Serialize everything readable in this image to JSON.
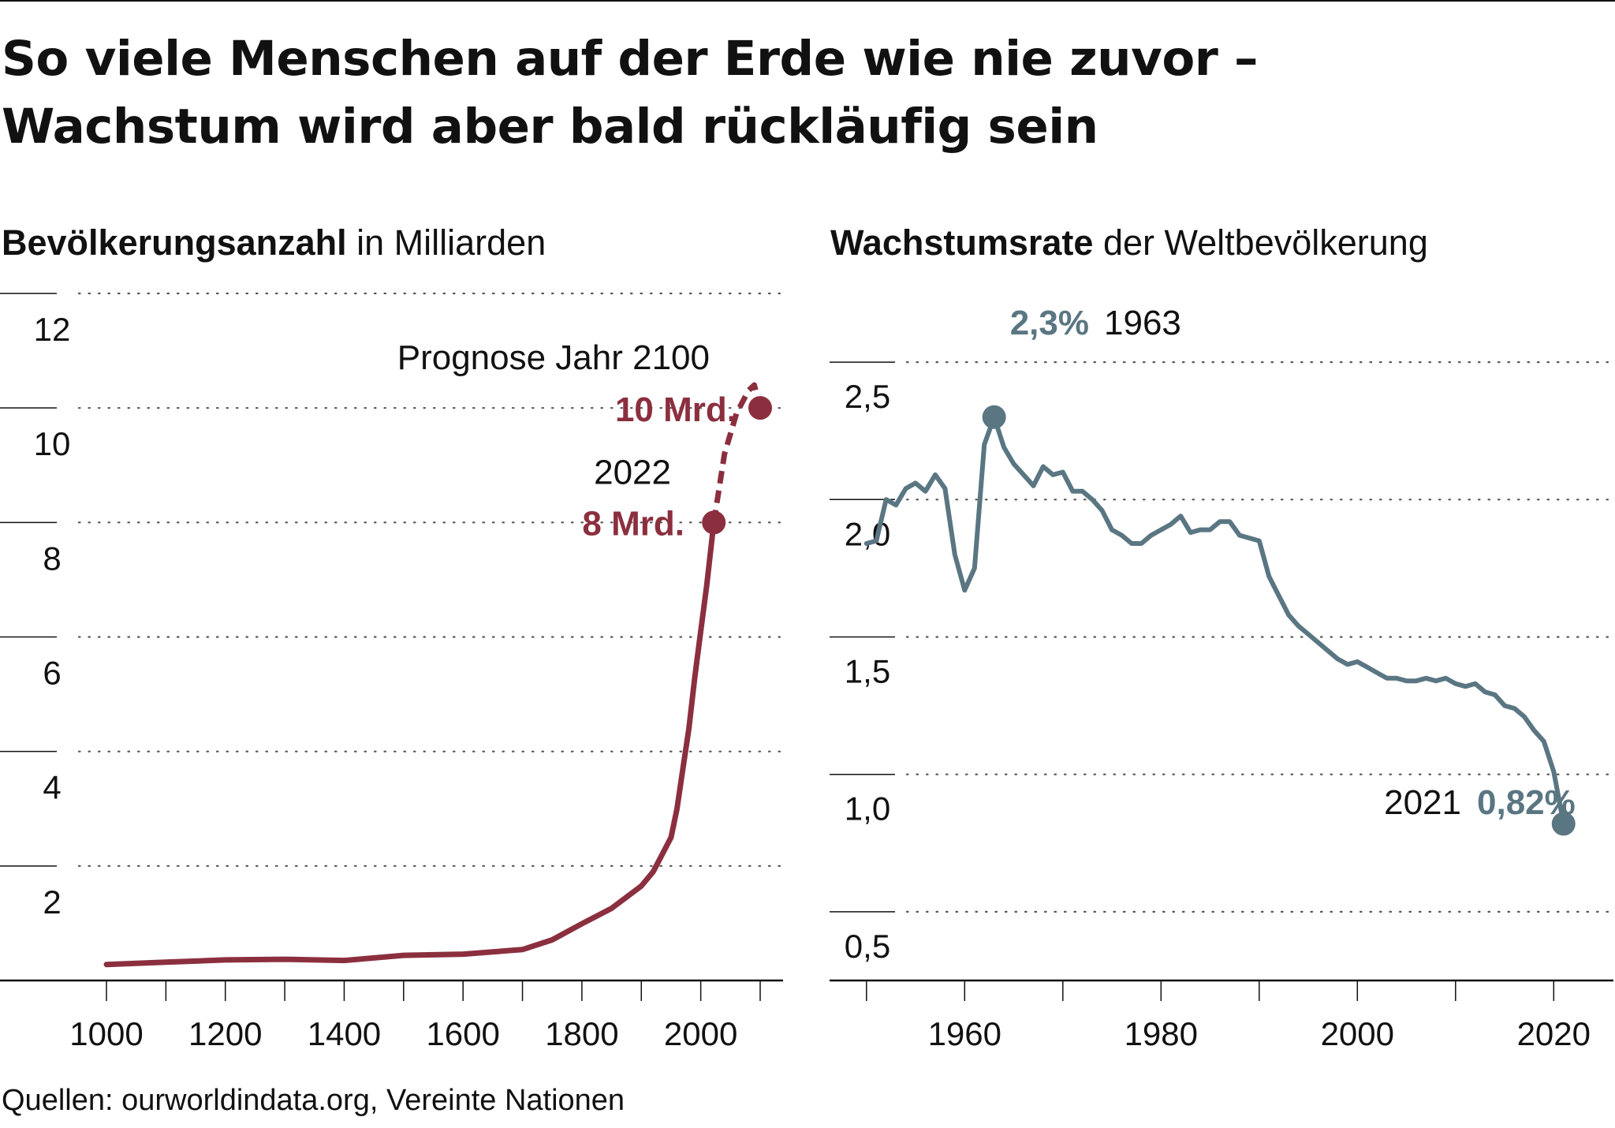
{
  "title": [
    "So viele Menschen auf der Erde wie nie zuvor –",
    "Wachstum wird aber bald rückläufig sein"
  ],
  "source": "Quellen: ourworldindata.org, Vereinte Nationen",
  "colors": {
    "population": "#8b2f3f",
    "growth": "#5a7682",
    "text": "#111111",
    "grid": "#555555"
  },
  "chart_data": [
    {
      "type": "line",
      "title_bold": "Bevölkerungsanzahl",
      "title_rest": " in Milliarden",
      "xlim": [
        1000,
        2100
      ],
      "ylim": [
        0,
        12
      ],
      "x_ticks": [
        1000,
        1200,
        1400,
        1600,
        1800,
        2000
      ],
      "y_ticks": [
        2,
        4,
        6,
        8,
        10,
        12
      ],
      "y_tick_labels": [
        "2",
        "4",
        "6",
        "8",
        "10",
        "12"
      ],
      "grid": true,
      "series": [
        {
          "values": [
            [
              1000,
              0.28
            ],
            [
              1100,
              0.32
            ],
            [
              1200,
              0.36
            ],
            [
              1300,
              0.37
            ],
            [
              1400,
              0.35
            ],
            [
              1500,
              0.44
            ],
            [
              1600,
              0.46
            ],
            [
              1700,
              0.54
            ],
            [
              1750,
              0.71
            ],
            [
              1800,
              0.99
            ],
            [
              1850,
              1.26
            ],
            [
              1900,
              1.65
            ],
            [
              1920,
              1.9
            ],
            [
              1940,
              2.3
            ],
            [
              1950,
              2.5
            ],
            [
              1960,
              3.0
            ],
            [
              1970,
              3.7
            ],
            [
              1980,
              4.4
            ],
            [
              1990,
              5.3
            ],
            [
              2000,
              6.1
            ],
            [
              2010,
              6.9
            ],
            [
              2022,
              8.0
            ]
          ]
        },
        {
          "style": "dashed",
          "values": [
            [
              2022,
              8.0
            ],
            [
              2040,
              9.2
            ],
            [
              2060,
              9.9
            ],
            [
              2080,
              10.3
            ],
            [
              2090,
              10.4
            ],
            [
              2100,
              10.0
            ]
          ]
        }
      ],
      "annotations": [
        {
          "label": "Prognose Jahr 2100",
          "value": "10 Mrd.",
          "x": 2100,
          "y": 10.0
        },
        {
          "label": "2022",
          "value": "8 Mrd.",
          "x": 2022,
          "y": 8.0
        }
      ]
    },
    {
      "type": "line",
      "title_bold": "Wachstumsrate",
      "title_rest": " der Weltbevölkerung",
      "xlim": [
        1946,
        2026
      ],
      "ylim": [
        0.25,
        2.75
      ],
      "x_ticks": [
        1950,
        1960,
        1970,
        1980,
        1990,
        2000,
        2010,
        2020
      ],
      "x_tick_labels": [
        "1960",
        "1980",
        "2000",
        "2020"
      ],
      "x_labeled_ticks": [
        1960,
        1980,
        2000,
        2020
      ],
      "y_ticks": [
        0.5,
        1.0,
        1.5,
        2.0,
        2.5
      ],
      "y_tick_labels": [
        "0,5",
        "1,0",
        "1,5",
        "2,0",
        "2,5"
      ],
      "grid": true,
      "series": [
        {
          "values": [
            [
              1950,
              1.84
            ],
            [
              1951,
              1.85
            ],
            [
              1952,
              2.0
            ],
            [
              1953,
              1.98
            ],
            [
              1954,
              2.04
            ],
            [
              1955,
              2.06
            ],
            [
              1956,
              2.03
            ],
            [
              1957,
              2.09
            ],
            [
              1958,
              2.04
            ],
            [
              1959,
              1.8
            ],
            [
              1960,
              1.67
            ],
            [
              1961,
              1.75
            ],
            [
              1962,
              2.2
            ],
            [
              1963,
              2.3
            ],
            [
              1964,
              2.19
            ],
            [
              1965,
              2.13
            ],
            [
              1966,
              2.09
            ],
            [
              1967,
              2.05
            ],
            [
              1968,
              2.12
            ],
            [
              1969,
              2.09
            ],
            [
              1970,
              2.1
            ],
            [
              1971,
              2.03
            ],
            [
              1972,
              2.03
            ],
            [
              1973,
              2.0
            ],
            [
              1974,
              1.96
            ],
            [
              1975,
              1.89
            ],
            [
              1976,
              1.87
            ],
            [
              1977,
              1.84
            ],
            [
              1978,
              1.84
            ],
            [
              1979,
              1.87
            ],
            [
              1980,
              1.89
            ],
            [
              1981,
              1.91
            ],
            [
              1982,
              1.94
            ],
            [
              1983,
              1.88
            ],
            [
              1984,
              1.89
            ],
            [
              1985,
              1.89
            ],
            [
              1986,
              1.92
            ],
            [
              1987,
              1.92
            ],
            [
              1988,
              1.87
            ],
            [
              1989,
              1.86
            ],
            [
              1990,
              1.85
            ],
            [
              1991,
              1.72
            ],
            [
              1992,
              1.65
            ],
            [
              1993,
              1.58
            ],
            [
              1994,
              1.54
            ],
            [
              1995,
              1.51
            ],
            [
              1996,
              1.48
            ],
            [
              1997,
              1.45
            ],
            [
              1998,
              1.42
            ],
            [
              1999,
              1.4
            ],
            [
              2000,
              1.41
            ],
            [
              2001,
              1.39
            ],
            [
              2002,
              1.37
            ],
            [
              2003,
              1.35
            ],
            [
              2004,
              1.35
            ],
            [
              2005,
              1.34
            ],
            [
              2006,
              1.34
            ],
            [
              2007,
              1.35
            ],
            [
              2008,
              1.34
            ],
            [
              2009,
              1.35
            ],
            [
              2010,
              1.33
            ],
            [
              2011,
              1.32
            ],
            [
              2012,
              1.33
            ],
            [
              2013,
              1.3
            ],
            [
              2014,
              1.29
            ],
            [
              2015,
              1.25
            ],
            [
              2016,
              1.24
            ],
            [
              2017,
              1.21
            ],
            [
              2018,
              1.16
            ],
            [
              2019,
              1.12
            ],
            [
              2020,
              1.01
            ],
            [
              2021,
              0.82
            ]
          ]
        }
      ],
      "annotations": [
        {
          "label": "1963",
          "value": "2,3%",
          "x": 1963,
          "y": 2.3
        },
        {
          "label": "2021",
          "value": "0,82%",
          "x": 2021,
          "y": 0.82
        }
      ]
    }
  ]
}
